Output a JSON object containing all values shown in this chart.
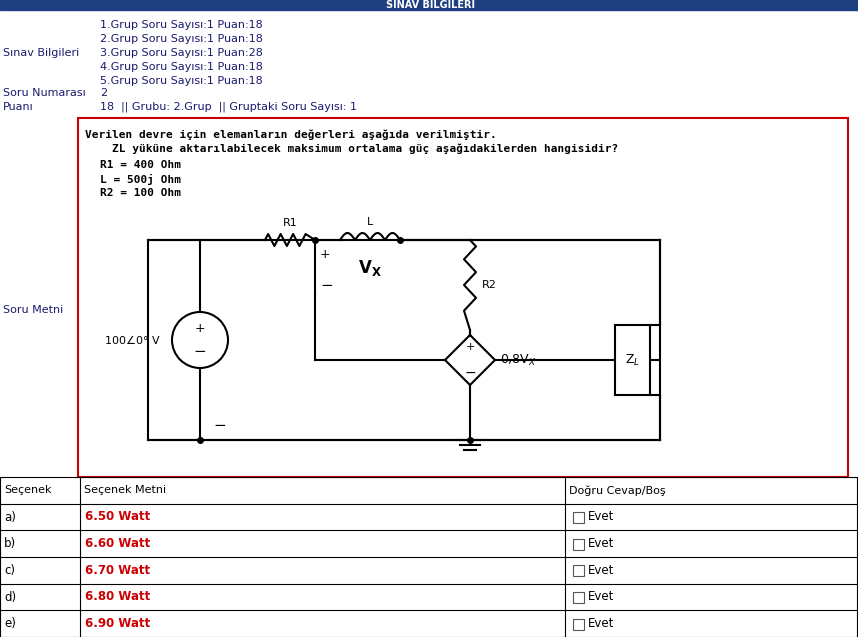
{
  "title_bar_color": "#1e4080",
  "sinav_bilgileri_label": "Sınav Bilgileri",
  "sinav_bilgileri_lines": [
    "1.Grup Soru Sayısı:1 Puan:18",
    "2.Grup Soru Sayısı:1 Puan:18",
    "3.Grup Soru Sayısı:1 Puan:28",
    "4.Grup Soru Sayısı:1 Puan:18",
    "5.Grup Soru Sayısı:1 Puan:18"
  ],
  "soru_numarasi_label": "Soru Numarası",
  "soru_numarasi_value": "2",
  "puan_label": "Puanı",
  "puan_value": "18  || Grubu: 2.Grup  || Gruptaki Soru Sayısı: 1",
  "soru_metni_label": "Soru Metni",
  "question_line1": "Verilen devre için elemanların değerleri aşağıda verilmiştir.",
  "question_line2": "    ZL yüküne aktarılabilecek maksimum ortalama güç aşağıdakilerden hangisidir?",
  "question_params": [
    "R1 = 400 Ohm",
    "L = 500j Ohm",
    "R2 = 100 Ohm"
  ],
  "secenekler": [
    "a)",
    "b)",
    "c)",
    "d)",
    "e)"
  ],
  "secenek_metinleri": [
    "6.50 Watt",
    "6.60 Watt",
    "6.70 Watt",
    "6.80 Watt",
    "6.90 Watt"
  ],
  "col_headers": [
    "Seçenek",
    "Seçenek Metni",
    "Doğru Cevap/Boş"
  ],
  "bg_color": "#ffffff",
  "option_text_color": "#cc0000",
  "border_color": "#cc0000",
  "dark_blue": "#1a1a6e",
  "text_black": "#000000",
  "title_text": "SINAV BİLGİLERİ"
}
